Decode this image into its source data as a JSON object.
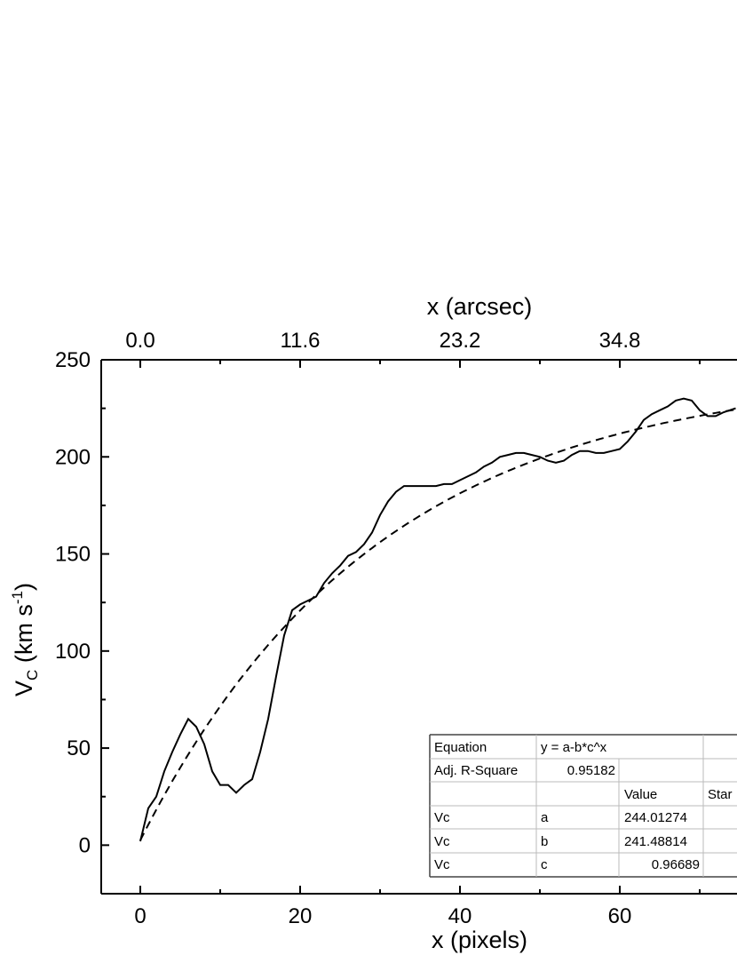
{
  "chart_data": {
    "type": "line",
    "xlabel": "x (pixels)",
    "ylabel_main": "V",
    "ylabel_sub": "C",
    "ylabel_units": " (km s",
    "ylabel_sup": "-1",
    "ylabel_close": ")",
    "top_xlabel": "x (arcsec)",
    "xlim": [
      -4.8,
      74.5
    ],
    "ylim": [
      -25,
      250
    ],
    "x_ticks": [
      0,
      20,
      40,
      60
    ],
    "x_tick_labels": [
      "0",
      "20",
      "40",
      "60"
    ],
    "y_ticks": [
      0,
      50,
      100,
      150,
      200,
      250
    ],
    "y_tick_labels": [
      "0",
      "50",
      "100",
      "150",
      "200",
      "250"
    ],
    "top_ticks": [
      0,
      20,
      40,
      60
    ],
    "top_tick_labels": [
      "0.0",
      "11.6",
      "23.2",
      "34.8"
    ],
    "series": [
      {
        "style": "solid",
        "x": [
          0,
          1,
          2,
          3,
          4,
          5,
          6,
          7,
          8,
          9,
          10,
          11,
          12,
          13,
          14,
          15,
          16,
          17,
          18,
          19,
          20,
          21,
          22,
          23,
          24,
          25,
          26,
          27,
          28,
          29,
          30,
          31,
          32,
          33,
          34,
          35,
          36,
          37,
          38,
          39,
          40,
          41,
          42,
          43,
          44,
          45,
          46,
          47,
          48,
          49,
          50,
          51,
          52,
          53,
          54,
          55,
          56,
          57,
          58,
          59,
          60,
          61,
          62,
          63,
          64,
          65,
          66,
          67,
          68,
          69,
          70,
          71,
          72,
          73,
          74.5
        ],
        "y": [
          2,
          19,
          25,
          38,
          48,
          57,
          65,
          61,
          52,
          38,
          31,
          31,
          27,
          31,
          34,
          48,
          65,
          87,
          108,
          121,
          124,
          126,
          128,
          135,
          140,
          144,
          149,
          151,
          155,
          161,
          170,
          177,
          182,
          185,
          185,
          185,
          185,
          185,
          186,
          186,
          188,
          190,
          192,
          195,
          197,
          200,
          201,
          202,
          202,
          201,
          200,
          198,
          197,
          198,
          201,
          203,
          203,
          202,
          202,
          203,
          204,
          208,
          213,
          219,
          222,
          224,
          226,
          229,
          230,
          229,
          224,
          221,
          221,
          223,
          225
        ]
      },
      {
        "style": "dashed",
        "equation": "y = a-b*c^x",
        "a": 244.01274,
        "b": 241.48814,
        "c": 0.96689
      }
    ],
    "table": {
      "row1": [
        "Equation",
        "y = a-b*c^x",
        ""
      ],
      "row2": [
        "Adj. R-Square",
        "0.95182",
        ""
      ],
      "row3": [
        "",
        "",
        "Value",
        "Star"
      ],
      "rows": [
        [
          "Vc",
          "a",
          "244.01274",
          ""
        ],
        [
          "Vc",
          "b",
          "241.48814",
          ""
        ],
        [
          "Vc",
          "c",
          "0.96689",
          ""
        ]
      ]
    }
  }
}
